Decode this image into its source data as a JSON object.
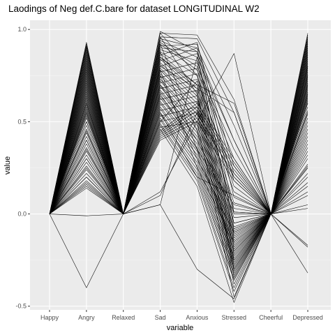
{
  "chart_data": {
    "type": "line",
    "title": "Laodings of Neg def.C.bare for dataset LONGITUDINAL W2",
    "xlabel": "variable",
    "ylabel": "value",
    "categories": [
      "Happy",
      "Angry",
      "Relaxed",
      "Sad",
      "Anxious",
      "Stressed",
      "Cheerful",
      "Depressed"
    ],
    "ylim": [
      -0.52,
      1.05
    ],
    "y_ticks": [
      {
        "value": -0.5,
        "label": "-0.5"
      },
      {
        "value": 0.0,
        "label": "0.0"
      },
      {
        "value": 0.5,
        "label": "0.5"
      },
      {
        "value": 1.0,
        "label": "1.0"
      }
    ],
    "grid": true,
    "line_color": "#000000",
    "panel_color": "#ebebeb",
    "series": [
      {
        "values": [
          0,
          0.93,
          0,
          0.98,
          0.97,
          0.62,
          0,
          0.98
        ]
      },
      {
        "values": [
          0,
          0.91,
          0,
          0.96,
          0.95,
          0.55,
          0,
          0.96
        ]
      },
      {
        "values": [
          0,
          0.9,
          0,
          0.95,
          0.9,
          0.48,
          0,
          0.94
        ]
      },
      {
        "values": [
          0,
          0.89,
          0,
          0.94,
          0.85,
          0.4,
          0,
          0.93
        ]
      },
      {
        "values": [
          0,
          0.88,
          0,
          0.93,
          0.8,
          0.35,
          0,
          0.92
        ]
      },
      {
        "values": [
          0,
          0.87,
          0,
          0.92,
          0.78,
          0.3,
          0,
          0.91
        ]
      },
      {
        "values": [
          0,
          0.86,
          0,
          0.91,
          0.92,
          0.26,
          0,
          0.9
        ]
      },
      {
        "values": [
          0,
          0.85,
          0,
          0.9,
          0.88,
          0.22,
          0,
          0.89
        ]
      },
      {
        "values": [
          0,
          0.84,
          0,
          0.89,
          0.83,
          0.18,
          0,
          0.88
        ]
      },
      {
        "values": [
          0,
          0.83,
          0,
          0.88,
          0.75,
          0.15,
          0,
          0.87
        ]
      },
      {
        "values": [
          0,
          0.82,
          0,
          0.87,
          0.7,
          0.12,
          0,
          0.86
        ]
      },
      {
        "values": [
          0,
          0.81,
          0,
          0.86,
          0.93,
          0.09,
          0,
          0.85
        ]
      },
      {
        "values": [
          0,
          0.8,
          0,
          0.85,
          0.68,
          0.06,
          0,
          0.84
        ]
      },
      {
        "values": [
          0,
          0.79,
          0,
          0.84,
          0.66,
          0.03,
          0,
          0.83
        ]
      },
      {
        "values": [
          0,
          0.78,
          0,
          0.83,
          0.9,
          0.01,
          0,
          0.82
        ]
      },
      {
        "values": [
          0,
          0.77,
          0,
          0.82,
          0.64,
          -0.02,
          0,
          0.81
        ]
      },
      {
        "values": [
          0,
          0.76,
          0,
          0.81,
          0.62,
          -0.05,
          0,
          0.8
        ]
      },
      {
        "values": [
          0,
          0.75,
          0,
          0.8,
          0.87,
          -0.07,
          0,
          0.79
        ]
      },
      {
        "values": [
          0,
          0.74,
          0,
          0.79,
          0.6,
          -0.08,
          0,
          0.78
        ]
      },
      {
        "values": [
          0,
          0.73,
          0,
          0.78,
          0.58,
          -0.09,
          0,
          0.77
        ]
      },
      {
        "values": [
          0,
          0.72,
          0,
          0.77,
          0.82,
          -0.1,
          0,
          0.76
        ]
      },
      {
        "values": [
          0,
          0.71,
          0,
          0.76,
          0.56,
          -0.11,
          0,
          0.75
        ]
      },
      {
        "values": [
          0,
          0.7,
          0,
          0.75,
          0.54,
          -0.12,
          0,
          0.74
        ]
      },
      {
        "values": [
          0,
          0.69,
          0,
          0.74,
          0.79,
          -0.13,
          0,
          0.73
        ]
      },
      {
        "values": [
          0,
          0.68,
          0,
          0.73,
          0.52,
          -0.14,
          0,
          0.72
        ]
      },
      {
        "values": [
          0,
          0.67,
          0,
          0.72,
          0.5,
          -0.15,
          0,
          0.71
        ]
      },
      {
        "values": [
          0,
          0.66,
          0,
          0.71,
          0.76,
          -0.16,
          0,
          0.7
        ]
      },
      {
        "values": [
          0,
          0.65,
          0,
          0.7,
          0.48,
          -0.17,
          0,
          0.69
        ]
      },
      {
        "values": [
          0,
          0.64,
          0,
          0.69,
          0.46,
          -0.18,
          0,
          0.68
        ]
      },
      {
        "values": [
          0,
          0.63,
          0,
          0.68,
          0.73,
          -0.19,
          0,
          0.67
        ]
      },
      {
        "values": [
          0,
          0.62,
          0,
          0.67,
          0.44,
          -0.2,
          0,
          0.66
        ]
      },
      {
        "values": [
          0,
          0.61,
          0,
          0.66,
          0.42,
          -0.21,
          0,
          0.65
        ]
      },
      {
        "values": [
          0,
          0.6,
          0,
          0.65,
          0.7,
          -0.22,
          0,
          0.64
        ]
      },
      {
        "values": [
          0,
          0.59,
          0,
          0.64,
          0.4,
          -0.23,
          0,
          0.63
        ]
      },
      {
        "values": [
          0,
          0.58,
          0,
          0.63,
          0.38,
          -0.24,
          0,
          0.62
        ]
      },
      {
        "values": [
          0,
          0.57,
          0,
          0.62,
          0.67,
          -0.25,
          0,
          0.61
        ]
      },
      {
        "values": [
          0,
          0.56,
          0,
          0.61,
          0.36,
          -0.26,
          0,
          0.6
        ]
      },
      {
        "values": [
          0,
          0.55,
          0,
          0.6,
          0.34,
          -0.27,
          0,
          0.58
        ]
      },
      {
        "values": [
          0,
          0.54,
          0,
          0.59,
          0.64,
          -0.28,
          0,
          0.56
        ]
      },
      {
        "values": [
          0,
          0.53,
          0,
          0.58,
          0.32,
          -0.29,
          0,
          0.54
        ]
      },
      {
        "values": [
          0,
          0.52,
          0,
          0.57,
          0.3,
          -0.3,
          0,
          0.52
        ]
      },
      {
        "values": [
          0,
          0.5,
          0,
          0.56,
          0.61,
          -0.31,
          0,
          0.5
        ]
      },
      {
        "values": [
          0,
          0.48,
          0,
          0.55,
          0.28,
          -0.32,
          0,
          0.48
        ]
      },
      {
        "values": [
          0,
          0.46,
          0,
          0.54,
          0.26,
          -0.33,
          0,
          0.46
        ]
      },
      {
        "values": [
          0,
          0.44,
          0,
          0.53,
          0.58,
          -0.34,
          0,
          0.44
        ]
      },
      {
        "values": [
          0,
          0.42,
          0,
          0.52,
          0.24,
          -0.35,
          0,
          0.42
        ]
      },
      {
        "values": [
          0,
          0.4,
          0,
          0.51,
          0.22,
          -0.36,
          0,
          0.4
        ]
      },
      {
        "values": [
          0,
          0.38,
          0,
          0.5,
          0.55,
          -0.38,
          0,
          0.38
        ]
      },
      {
        "values": [
          0,
          0.36,
          0,
          0.49,
          0.2,
          -0.4,
          0,
          0.36
        ]
      },
      {
        "values": [
          0,
          0.34,
          0,
          0.48,
          0.18,
          -0.42,
          0,
          0.34
        ]
      },
      {
        "values": [
          0,
          0.32,
          0,
          0.47,
          0.5,
          -0.45,
          0,
          0.32
        ]
      },
      {
        "values": [
          0,
          0.3,
          0,
          0.46,
          0.15,
          -0.48,
          0,
          0.3
        ]
      },
      {
        "values": [
          0,
          0.28,
          0,
          0.45,
          0.6,
          0.3,
          0,
          0.27
        ]
      },
      {
        "values": [
          0,
          0.26,
          0,
          0.44,
          0.58,
          0.28,
          0,
          0.25
        ]
      },
      {
        "values": [
          0,
          0.24,
          0,
          0.43,
          0.56,
          0.26,
          0,
          0.22
        ]
      },
      {
        "values": [
          0,
          0.22,
          0,
          0.42,
          0.54,
          0.24,
          0,
          0.2
        ]
      },
      {
        "values": [
          0,
          0.2,
          0,
          0.41,
          0.52,
          0.22,
          0,
          0.17
        ]
      },
      {
        "values": [
          0,
          0.18,
          0,
          0.4,
          0.5,
          0.87,
          0,
          0.15
        ]
      },
      {
        "values": [
          0,
          0.17,
          0,
          0.1,
          0.55,
          0.2,
          0,
          0.12
        ]
      },
      {
        "values": [
          0,
          0.16,
          0,
          0.12,
          0.5,
          0.18,
          0,
          0.1
        ]
      },
      {
        "values": [
          0,
          0.15,
          0,
          0.85,
          0.7,
          0.6,
          0,
          0.8
        ]
      },
      {
        "values": [
          0,
          0.14,
          0,
          0.8,
          0.68,
          0.55,
          0,
          0.75
        ]
      },
      {
        "values": [
          0,
          -0.01,
          0,
          0.05,
          -0.3,
          -0.46,
          0,
          -0.17
        ]
      },
      {
        "values": [
          0,
          -0.4,
          0,
          0.05,
          0.85,
          -0.05,
          0,
          -0.32
        ]
      },
      {
        "values": [
          0,
          0.92,
          0,
          0.55,
          0.2,
          0.1,
          0,
          0.97
        ]
      },
      {
        "values": [
          0,
          0.91,
          0,
          0.5,
          0.72,
          0.2,
          0,
          0.95
        ]
      },
      {
        "values": [
          0,
          0.6,
          0,
          0.7,
          0.4,
          0.01,
          0,
          0.03
        ]
      },
      {
        "values": [
          0,
          0.55,
          0,
          0.65,
          0.35,
          0.05,
          0,
          0.26
        ]
      },
      {
        "values": [
          0,
          0.5,
          0,
          0.75,
          0.3,
          -0.1,
          0,
          0.25
        ]
      },
      {
        "values": [
          0,
          0.45,
          0,
          0.78,
          0.25,
          -0.15,
          0,
          -0.18
        ]
      },
      {
        "values": [
          0,
          0.4,
          0,
          0.88,
          0.35,
          -0.2,
          0,
          0.05
        ]
      },
      {
        "values": [
          0,
          0.35,
          0,
          0.92,
          0.45,
          -0.25,
          0,
          0.55
        ]
      },
      {
        "values": [
          0,
          0.3,
          0,
          0.96,
          0.65,
          -0.3,
          0,
          0.6
        ]
      },
      {
        "values": [
          0,
          0.25,
          0,
          0.98,
          0.75,
          0.0,
          0,
          0.65
        ]
      },
      {
        "values": [
          0,
          0.2,
          0,
          0.99,
          0.88,
          0.4,
          0,
          0.7
        ]
      }
    ]
  }
}
